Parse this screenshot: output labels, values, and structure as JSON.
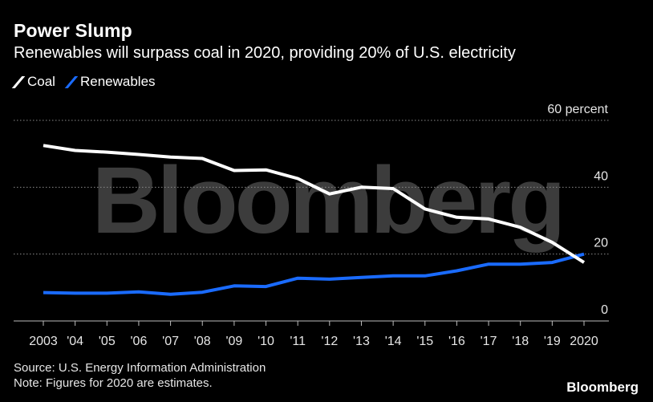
{
  "header": {
    "title": "Power Slump",
    "subtitle": "Renewables will surpass coal in 2020, providing 20% of U.S. electricity"
  },
  "legend": {
    "coal_label": "Coal",
    "renewables_label": "Renewables"
  },
  "watermark": "Bloomberg",
  "footer": {
    "source": "Source: U.S. Energy Information Administration",
    "note": "Note: Figures for 2020 are estimates.",
    "brand": "Bloomberg"
  },
  "colors": {
    "coal": "#ffffff",
    "renewables": "#1a6bff",
    "gridline": "#8a8a8a",
    "watermark": "#3c3c3c"
  },
  "chart_data": {
    "type": "line",
    "categories": [
      "2003",
      "'04",
      "'05",
      "'06",
      "'07",
      "'08",
      "'09",
      "'10",
      "'11",
      "'12",
      "'13",
      "'14",
      "'15",
      "'16",
      "'17",
      "'18",
      "'19",
      "2020"
    ],
    "series": [
      {
        "name": "Coal",
        "values": [
          52.5,
          51.0,
          50.5,
          49.8,
          49.0,
          48.6,
          45.0,
          45.2,
          42.6,
          38.0,
          40.0,
          39.6,
          33.5,
          31.0,
          30.5,
          28.0,
          23.5,
          17.5
        ]
      },
      {
        "name": "Renewables",
        "values": [
          8.5,
          8.3,
          8.3,
          8.7,
          8.0,
          8.6,
          10.5,
          10.3,
          12.8,
          12.5,
          13.0,
          13.5,
          13.5,
          15.0,
          17.0,
          17.0,
          17.5,
          20.0
        ]
      }
    ],
    "yticks": [
      {
        "value": 0,
        "label": "0"
      },
      {
        "value": 20,
        "label": "20"
      },
      {
        "value": 40,
        "label": "40"
      },
      {
        "value": 60,
        "label": "60 percent"
      }
    ],
    "ylim": [
      0,
      60
    ],
    "grid": true,
    "legend_position": "top-left"
  }
}
